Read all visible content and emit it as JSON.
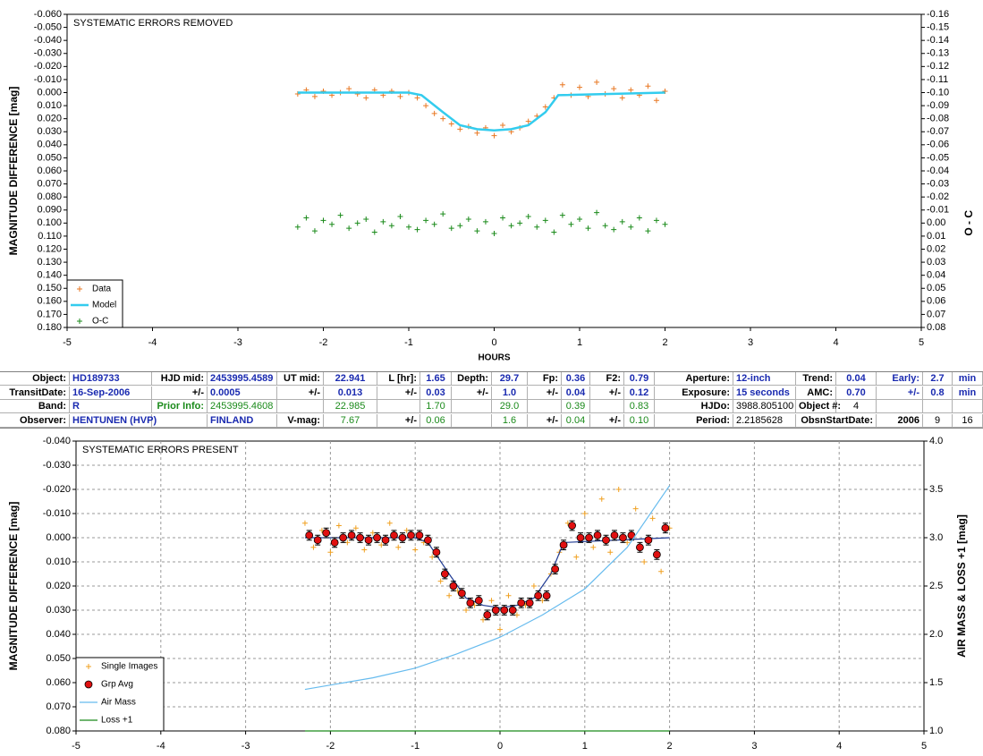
{
  "chart_data": [
    {
      "type": "scatter",
      "title": "SYSTEMATIC ERRORS REMOVED",
      "xlabel": "HOURS",
      "ylabel": "MAGNITUDE DIFFERENCE [mag]",
      "y2label": "O - C",
      "xlim": [
        -5,
        5
      ],
      "xticks": [
        -5,
        -4,
        -3,
        -2,
        -1,
        0,
        1,
        2,
        3,
        4,
        5
      ],
      "ylim": [
        -0.06,
        0.18
      ],
      "y_reversed": true,
      "yticks": [
        {
          "value": -0.06,
          "label": "-0.060"
        },
        {
          "value": -0.05,
          "label": "-0.050"
        },
        {
          "value": -0.04,
          "label": "-0.040"
        },
        {
          "value": -0.03,
          "label": "-0.030"
        },
        {
          "value": -0.02,
          "label": "-0.020"
        },
        {
          "value": -0.01,
          "label": "-0.010"
        },
        {
          "value": 0,
          "label": "0.000"
        },
        {
          "value": 0.01,
          "label": "0.010"
        },
        {
          "value": 0.02,
          "label": "0.020"
        },
        {
          "value": 0.03,
          "label": "0.030"
        },
        {
          "value": 0.04,
          "label": "0.040"
        },
        {
          "value": 0.05,
          "label": "0.050"
        },
        {
          "value": 0.06,
          "label": "0.060"
        },
        {
          "value": 0.07,
          "label": "0.070"
        },
        {
          "value": 0.08,
          "label": "0.080"
        },
        {
          "value": 0.09,
          "label": "0.090"
        },
        {
          "value": 0.1,
          "label": "0.100"
        },
        {
          "value": 0.11,
          "label": "0.110"
        },
        {
          "value": 0.12,
          "label": "0.120"
        },
        {
          "value": 0.13,
          "label": "0.130"
        },
        {
          "value": 0.14,
          "label": "0.140"
        },
        {
          "value": 0.15,
          "label": "0.150"
        },
        {
          "value": 0.16,
          "label": "0.160"
        },
        {
          "value": 0.17,
          "label": "0.170"
        },
        {
          "value": 0.18,
          "label": "0.180"
        }
      ],
      "y2lim": [
        -0.16,
        0.08
      ],
      "y2_reversed": true,
      "y2ticks": [
        -0.16,
        -0.15,
        -0.14,
        -0.13,
        -0.12,
        -0.11,
        {
          "value": -0.1,
          "label": "-0.10"
        },
        -0.09,
        -0.08,
        -0.07,
        -0.06,
        -0.05,
        -0.04,
        -0.03,
        -0.02,
        -0.01,
        {
          "value": 0,
          "label": "0.00"
        },
        0.01,
        0.02,
        0.03,
        0.04,
        0.05,
        0.06,
        0.07,
        0.08
      ],
      "grid": false,
      "legend": "lower left",
      "x": [
        -2.3,
        -2.2,
        -2.1,
        -2.0,
        -1.9,
        -1.8,
        -1.7,
        -1.6,
        -1.5,
        -1.4,
        -1.3,
        -1.2,
        -1.1,
        -1.0,
        -0.9,
        -0.8,
        -0.7,
        -0.6,
        -0.5,
        -0.4,
        -0.3,
        -0.2,
        -0.1,
        0.0,
        0.1,
        0.2,
        0.3,
        0.4,
        0.5,
        0.6,
        0.7,
        0.8,
        0.9,
        1.0,
        1.1,
        1.2,
        1.3,
        1.4,
        1.5,
        1.6,
        1.7,
        1.8,
        1.9,
        2.0
      ],
      "series": [
        {
          "name": "Data",
          "type": "scatter",
          "color": "#e87722",
          "values": [
            0.001,
            -0.002,
            0.003,
            -0.001,
            0.002,
            0.0,
            -0.003,
            0.001,
            0.004,
            -0.002,
            0.002,
            -0.001,
            0.003,
            0.0,
            0.004,
            0.01,
            0.016,
            0.02,
            0.024,
            0.028,
            0.026,
            0.031,
            0.027,
            0.033,
            0.025,
            0.03,
            0.027,
            0.022,
            0.018,
            0.011,
            0.004,
            -0.006,
            0.002,
            -0.004,
            0.003,
            -0.008,
            0.001,
            -0.003,
            0.004,
            -0.002,
            0.002,
            -0.005,
            0.006,
            -0.001
          ]
        },
        {
          "name": "Model",
          "type": "line",
          "color": "#33ccee",
          "x": [
            -2.3,
            -1.0,
            -0.85,
            -0.6,
            -0.4,
            -0.2,
            0.0,
            0.2,
            0.4,
            0.6,
            0.75,
            2.0
          ],
          "values": [
            0.0,
            0.0,
            0.002,
            0.015,
            0.025,
            0.028,
            0.029,
            0.028,
            0.025,
            0.015,
            0.002,
            0.0
          ]
        },
        {
          "name": "O-C",
          "type": "scatter",
          "color": "#1a8a1a",
          "axis": "y2",
          "values": [
            0.003,
            -0.004,
            0.006,
            -0.002,
            0.001,
            -0.006,
            0.004,
            0.0,
            -0.003,
            0.007,
            -0.001,
            0.002,
            -0.005,
            0.003,
            0.005,
            -0.002,
            0.001,
            -0.007,
            0.004,
            0.002,
            -0.003,
            0.006,
            -0.001,
            0.008,
            -0.004,
            0.002,
            0.0,
            -0.005,
            0.003,
            -0.002,
            0.007,
            -0.006,
            0.001,
            -0.003,
            0.004,
            -0.008,
            0.002,
            0.005,
            -0.001,
            0.003,
            -0.004,
            0.006,
            -0.002,
            0.001
          ]
        }
      ]
    },
    {
      "type": "scatter",
      "title": "SYSTEMATIC ERRORS PRESENT",
      "ylabel": "MAGNITUDE DIFFERENCE [mag]",
      "y2label": "AIR MASS & LOSS +1 [mag]",
      "xlim": [
        -5,
        5
      ],
      "xticks": [
        -5,
        -4,
        -3,
        -2,
        -1,
        0,
        1,
        2,
        3,
        4,
        5
      ],
      "ylim": [
        -0.04,
        0.08
      ],
      "y_reversed": true,
      "yticks": [
        {
          "value": -0.04,
          "label": "-0.040"
        },
        {
          "value": -0.03,
          "label": "-0.030"
        },
        {
          "value": -0.02,
          "label": "-0.020"
        },
        {
          "value": -0.01,
          "label": "-0.010"
        },
        {
          "value": 0,
          "label": "0.000"
        },
        {
          "value": 0.01,
          "label": "0.010"
        },
        {
          "value": 0.02,
          "label": "0.020"
        },
        {
          "value": 0.03,
          "label": "0.030"
        },
        {
          "value": 0.04,
          "label": "0.040"
        },
        {
          "value": 0.05,
          "label": "0.050"
        },
        {
          "value": 0.06,
          "label": "0.060"
        },
        {
          "value": 0.07,
          "label": "0.070"
        },
        {
          "value": 0.08,
          "label": "0.080"
        }
      ],
      "y2lim": [
        1,
        4
      ],
      "y2_reversed": false,
      "y2ticks": [
        {
          "value": 1,
          "label": "1.0"
        },
        1.5,
        {
          "value": 2,
          "label": "2.0"
        },
        2.5,
        {
          "value": 3,
          "label": "3.0"
        },
        3.5,
        {
          "value": 4,
          "label": "4.0"
        }
      ],
      "grid": true,
      "legend": "lower left",
      "x": [
        -2.3,
        -2.2,
        -2.1,
        -2.0,
        -1.9,
        -1.8,
        -1.7,
        -1.6,
        -1.5,
        -1.4,
        -1.3,
        -1.2,
        -1.1,
        -1.0,
        -0.9,
        -0.8,
        -0.7,
        -0.6,
        -0.5,
        -0.4,
        -0.3,
        -0.2,
        -0.1,
        0.0,
        0.1,
        0.2,
        0.3,
        0.4,
        0.5,
        0.6,
        0.7,
        0.8,
        0.9,
        1.0,
        1.1,
        1.2,
        1.3,
        1.4,
        1.5,
        1.6,
        1.7,
        1.8,
        1.9,
        2.0
      ],
      "series": [
        {
          "name": "Single Images",
          "type": "scatter",
          "color": "#f0a020",
          "values": [
            -0.006,
            0.004,
            -0.003,
            0.006,
            -0.005,
            0.002,
            -0.004,
            0.005,
            -0.002,
            0.003,
            -0.006,
            0.004,
            -0.003,
            0.005,
            0.002,
            0.008,
            0.018,
            0.024,
            0.022,
            0.03,
            0.028,
            0.034,
            0.026,
            0.038,
            0.024,
            0.032,
            0.028,
            0.02,
            0.026,
            0.015,
            0.006,
            -0.006,
            0.008,
            -0.01,
            0.004,
            -0.016,
            0.006,
            -0.02,
            0.002,
            -0.012,
            0.01,
            -0.008,
            0.014,
            -0.004
          ]
        },
        {
          "type": "line",
          "color": "#1f3a93",
          "x": [
            -2.3,
            -1.0,
            -0.85,
            -0.6,
            -0.4,
            -0.2,
            0.0,
            0.2,
            0.4,
            0.6,
            0.75,
            2.0
          ],
          "values": [
            0.0,
            0.0,
            0.002,
            0.015,
            0.025,
            0.028,
            0.029,
            0.028,
            0.025,
            0.015,
            0.002,
            0.0
          ]
        },
        {
          "name": "Grp Avg",
          "type": "errorbar",
          "color": "#e01010",
          "x": [
            -2.25,
            -2.15,
            -2.05,
            -1.95,
            -1.85,
            -1.75,
            -1.65,
            -1.55,
            -1.45,
            -1.35,
            -1.25,
            -1.15,
            -1.05,
            -0.95,
            -0.85,
            -0.75,
            -0.65,
            -0.55,
            -0.45,
            -0.35,
            -0.25,
            -0.15,
            -0.05,
            0.05,
            0.15,
            0.25,
            0.35,
            0.45,
            0.55,
            0.65,
            0.75,
            0.85,
            0.95,
            1.05,
            1.15,
            1.25,
            1.35,
            1.45,
            1.55,
            1.65,
            1.75,
            1.85,
            1.95
          ],
          "values": [
            -0.001,
            0.001,
            -0.002,
            0.002,
            0.0,
            -0.001,
            0.0,
            0.001,
            0.0,
            0.001,
            -0.001,
            0.0,
            -0.001,
            -0.001,
            0.001,
            0.006,
            0.015,
            0.02,
            0.023,
            0.027,
            0.026,
            0.032,
            0.03,
            0.03,
            0.03,
            0.027,
            0.027,
            0.024,
            0.024,
            0.013,
            0.003,
            -0.005,
            0.0,
            0.0,
            -0.001,
            0.001,
            -0.001,
            0.0,
            -0.001,
            0.004,
            0.001,
            0.007,
            -0.004
          ],
          "errors": [
            0.002,
            0.002,
            0.002,
            0.002,
            0.002,
            0.002,
            0.002,
            0.002,
            0.002,
            0.002,
            0.002,
            0.002,
            0.002,
            0.002,
            0.002,
            0.002,
            0.002,
            0.002,
            0.002,
            0.002,
            0.002,
            0.002,
            0.002,
            0.002,
            0.002,
            0.002,
            0.002,
            0.002,
            0.002,
            0.002,
            0.002,
            0.002,
            0.002,
            0.002,
            0.002,
            0.002,
            0.002,
            0.002,
            0.002,
            0.002,
            0.002,
            0.002,
            0.002
          ]
        },
        {
          "name": "Air Mass",
          "type": "line",
          "color": "#66bbee",
          "axis": "y2",
          "x": [
            -2.3,
            -1.5,
            -1.0,
            -0.5,
            0.0,
            0.5,
            1.0,
            1.5,
            2.0
          ],
          "values": [
            1.43,
            1.55,
            1.65,
            1.8,
            1.97,
            2.2,
            2.47,
            2.9,
            3.54
          ]
        },
        {
          "name": "Loss +1",
          "type": "line",
          "color": "#1a8a1a",
          "axis": "y2",
          "x": [
            -2.3,
            2.0
          ],
          "values": [
            1.0,
            1.0
          ]
        }
      ]
    }
  ],
  "table": {
    "rows": [
      [
        "Object:",
        "HD189733",
        "HJD mid:",
        "2453995.4589",
        "UT mid:",
        "22.941",
        "L [hr]:",
        "1.65",
        "Depth:",
        "29.7",
        "Fp:",
        "0.36",
        "F2:",
        "0.79",
        "Aperture:",
        "12-inch",
        "Trend:",
        "0.04",
        "Early:",
        "2.7",
        "min"
      ],
      [
        "TransitDate:",
        "16-Sep-2006",
        "+/-",
        "0.0005",
        "+/-",
        "0.013",
        "+/-",
        "0.03",
        "+/-",
        "1.0",
        "+/-",
        "0.04",
        "+/-",
        "0.12",
        "Exposure:",
        "15 seconds",
        "AMC:",
        "0.70",
        "+/-",
        "0.8",
        "min"
      ],
      [
        "Band:",
        "R",
        "Prior Info:",
        "2453995.4608",
        null,
        "22.985",
        null,
        "1.70",
        null,
        "29.0",
        null,
        "0.39",
        null,
        "0.83",
        "HJDo:",
        "3988.805100",
        "Object #:",
        "4"
      ],
      [
        "Observer:",
        "HENTUNEN (HVP)",
        null,
        "FINLAND",
        "V-mag:",
        "7.67",
        "+/-",
        "0.06",
        null,
        "1.6",
        "+/-",
        "0.04",
        "+/-",
        "0.10",
        "Period:",
        "2.2185628",
        "ObsnStartDate:",
        null,
        "2006",
        "9",
        "16"
      ]
    ]
  }
}
